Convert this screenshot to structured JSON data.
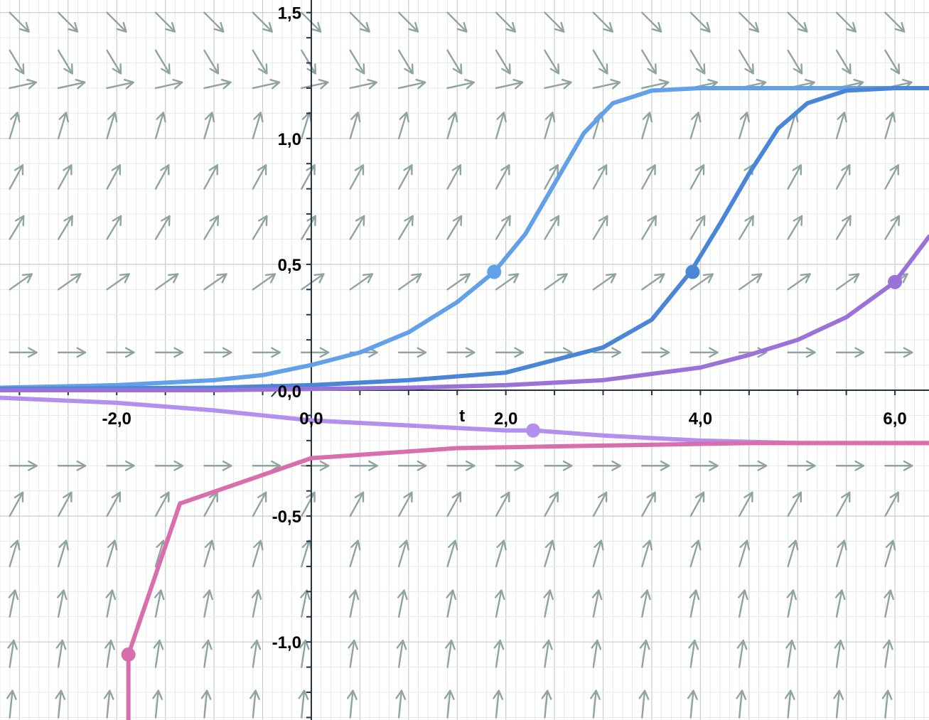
{
  "chart_data": {
    "type": "line",
    "subtype": "slope-field-with-solution-curves",
    "xlabel": "t",
    "ylabel": "",
    "xlim": [
      -3.2,
      6.35
    ],
    "ylim": [
      -1.31,
      1.55
    ],
    "grid": true,
    "x_ticks": [
      {
        "value": -2,
        "label": "-2,0"
      },
      {
        "value": 0,
        "label": "0,0"
      },
      {
        "value": 2,
        "label": "2,0"
      },
      {
        "value": 4,
        "label": "4,0"
      },
      {
        "value": 6,
        "label": "6,0"
      }
    ],
    "y_ticks": [
      {
        "value": 1.5,
        "label": "1,5"
      },
      {
        "value": 1.0,
        "label": "1,0"
      },
      {
        "value": 0.5,
        "label": "0,5"
      },
      {
        "value": 0.0,
        "label": "0,0"
      },
      {
        "value": -0.5,
        "label": "-0,5"
      },
      {
        "value": -1.0,
        "label": "-1,0"
      }
    ],
    "slope_field": {
      "color": "#8fa3a0",
      "rows": [
        {
          "y": 1.5,
          "dx": 1.0,
          "dy": -1.0
        },
        {
          "y": 1.35,
          "dx": 0.6,
          "dy": -1.0
        },
        {
          "y": 1.2,
          "dx": 1.0,
          "dy": 0.22
        },
        {
          "y": 1.0,
          "dx": 0.3,
          "dy": 1.0
        },
        {
          "y": 0.8,
          "dx": 0.55,
          "dy": 1.0
        },
        {
          "y": 0.6,
          "dx": 0.6,
          "dy": 1.0
        },
        {
          "y": 0.4,
          "dx": 1.0,
          "dy": 0.7
        },
        {
          "y": 0.15,
          "dx": 1.0,
          "dy": 0.0
        },
        {
          "y": -0.3,
          "dx": 1.0,
          "dy": 0.0
        },
        {
          "y": -0.5,
          "dx": 0.55,
          "dy": 1.0
        },
        {
          "y": -0.7,
          "dx": 0.3,
          "dy": 1.0
        },
        {
          "y": -0.9,
          "dx": 0.2,
          "dy": 1.0
        },
        {
          "y": -1.1,
          "dx": 0.15,
          "dy": 1.0
        },
        {
          "y": -1.3,
          "dx": 0.1,
          "dy": 1.0
        }
      ],
      "x_positions": [
        -3.1,
        -2.6,
        -2.1,
        -1.6,
        -1.1,
        -0.6,
        -0.1,
        0.4,
        0.9,
        1.4,
        1.9,
        2.4,
        2.9,
        3.4,
        3.9,
        4.4,
        4.9,
        5.4,
        5.9
      ]
    },
    "series": [
      {
        "color": "#62a0ea",
        "x": [
          -3.2,
          -2.0,
          -1.0,
          -0.5,
          0.0,
          0.5,
          1.0,
          1.5,
          1.88,
          2.2,
          2.5,
          2.8,
          3.1,
          3.5,
          4.0,
          5.0,
          6.35
        ],
        "y": [
          0.01,
          0.02,
          0.04,
          0.06,
          0.1,
          0.15,
          0.23,
          0.35,
          0.47,
          0.62,
          0.82,
          1.02,
          1.14,
          1.19,
          1.2,
          1.2,
          1.2
        ],
        "marker": {
          "x": 1.88,
          "y": 0.47
        }
      },
      {
        "color": "#4a86d8",
        "x": [
          -3.2,
          -1.0,
          0.0,
          1.0,
          2.0,
          3.0,
          3.5,
          3.9,
          4.2,
          4.5,
          4.8,
          5.1,
          5.5,
          6.0,
          6.35
        ],
        "y": [
          0.005,
          0.01,
          0.02,
          0.04,
          0.07,
          0.17,
          0.28,
          0.47,
          0.66,
          0.86,
          1.04,
          1.14,
          1.19,
          1.2,
          1.2
        ],
        "marker": {
          "x": 3.92,
          "y": 0.47
        }
      },
      {
        "color": "#9b72d8",
        "x": [
          -3.2,
          -1.0,
          0.0,
          1.0,
          2.0,
          3.0,
          4.0,
          4.5,
          5.0,
          5.5,
          6.0,
          6.35
        ],
        "y": [
          0.0,
          0.0,
          0.005,
          0.01,
          0.02,
          0.04,
          0.09,
          0.14,
          0.2,
          0.29,
          0.43,
          0.61
        ],
        "marker": {
          "x": 6.0,
          "y": 0.43
        }
      },
      {
        "color": "#b38ff0",
        "x": [
          -3.2,
          -2.0,
          -1.0,
          -0.5,
          0.0,
          1.0,
          2.0,
          2.3,
          3.0,
          4.0,
          5.0,
          6.35
        ],
        "y": [
          -0.03,
          -0.05,
          -0.08,
          -0.1,
          -0.12,
          -0.14,
          -0.16,
          -0.16,
          -0.18,
          -0.2,
          -0.21,
          -0.21
        ],
        "marker": {
          "x": 2.28,
          "y": -0.16
        }
      },
      {
        "color": "#d96eac",
        "x": [
          -1.88,
          -1.88,
          -1.35,
          0.0,
          1.5,
          3.0,
          4.5,
          6.35
        ],
        "y": [
          -1.31,
          -1.05,
          -0.45,
          -0.27,
          -0.23,
          -0.22,
          -0.21,
          -0.21
        ],
        "marker": {
          "x": -1.88,
          "y": -1.05
        }
      }
    ]
  }
}
